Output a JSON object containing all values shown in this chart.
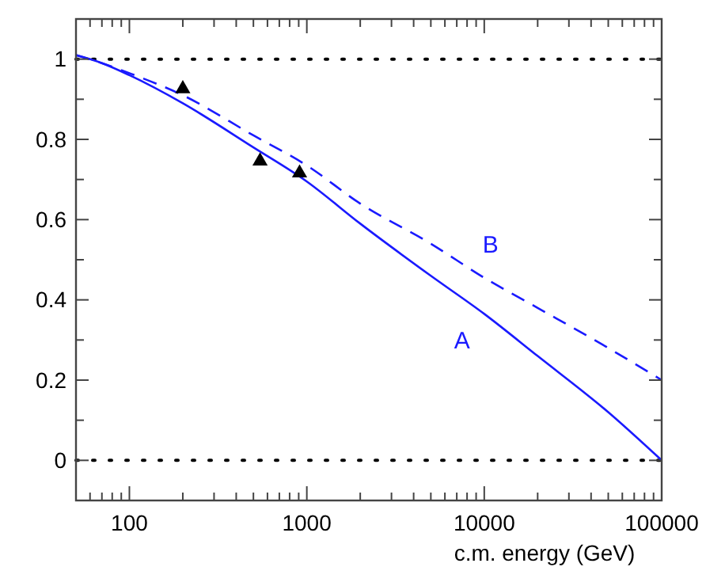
{
  "chart_data": {
    "type": "line",
    "xlabel": "c.m. energy (GeV)",
    "log": "x",
    "xlim": [
      50,
      100000
    ],
    "ylim": [
      -0.1,
      1.1
    ],
    "xticks": [
      {
        "value": 60,
        "label": null
      },
      {
        "value": 70,
        "label": null
      },
      {
        "value": 80,
        "label": null
      },
      {
        "value": 90,
        "label": null
      },
      100,
      {
        "value": 200,
        "label": null
      },
      {
        "value": 300,
        "label": null
      },
      {
        "value": 400,
        "label": null
      },
      {
        "value": 500,
        "label": null
      },
      {
        "value": 600,
        "label": null
      },
      {
        "value": 700,
        "label": null
      },
      {
        "value": 800,
        "label": null
      },
      {
        "value": 900,
        "label": null
      },
      1000,
      {
        "value": 2000,
        "label": null
      },
      {
        "value": 3000,
        "label": null
      },
      {
        "value": 4000,
        "label": null
      },
      {
        "value": 5000,
        "label": null
      },
      {
        "value": 6000,
        "label": null
      },
      {
        "value": 7000,
        "label": null
      },
      {
        "value": 8000,
        "label": null
      },
      {
        "value": 9000,
        "label": null
      },
      10000,
      {
        "value": 20000,
        "label": null
      },
      {
        "value": 30000,
        "label": null
      },
      {
        "value": 40000,
        "label": null
      },
      {
        "value": 50000,
        "label": null
      },
      {
        "value": 60000,
        "label": null
      },
      {
        "value": 70000,
        "label": null
      },
      {
        "value": 80000,
        "label": null
      },
      {
        "value": 90000,
        "label": null
      },
      100000
    ],
    "yticks": [
      0,
      {
        "value": 0.1,
        "label": null
      },
      0.2,
      {
        "value": 0.3,
        "label": null
      },
      0.4,
      {
        "value": 0.5,
        "label": null
      },
      0.6,
      {
        "value": 0.7,
        "label": null
      },
      0.8,
      {
        "value": 0.9,
        "label": null
      },
      1
    ],
    "grid": false,
    "ref_lines": [
      {
        "axis": "y",
        "value": 0,
        "color": "#000000",
        "line_style": "dotted"
      },
      {
        "axis": "y",
        "value": 1,
        "color": "#000000",
        "line_style": "dotted"
      }
    ],
    "series": [
      {
        "name": "A",
        "color": "#1a1aff",
        "line_style": "solid",
        "marker": "none",
        "x": [
          50,
          70,
          100,
          200,
          500,
          1000,
          2000,
          5000,
          10000,
          20000,
          50000,
          100000
        ],
        "values": [
          1.01,
          0.99,
          0.96,
          0.89,
          0.78,
          0.695,
          0.59,
          0.46,
          0.365,
          0.26,
          0.12,
          0
        ]
      },
      {
        "name": "B",
        "color": "#1a1aff",
        "line_style": "dashed",
        "marker": "none",
        "x": [
          50,
          70,
          100,
          200,
          500,
          1000,
          2000,
          5000,
          10000,
          20000,
          50000,
          100000
        ],
        "values": [
          1.01,
          0.99,
          0.965,
          0.91,
          0.81,
          0.735,
          0.64,
          0.54,
          0.455,
          0.38,
          0.28,
          0.2
        ]
      },
      {
        "type": "scatter",
        "color": "#000000",
        "marker": "triangle",
        "x": [
          200,
          545,
          910
        ],
        "values": [
          0.93,
          0.75,
          0.72
        ]
      }
    ]
  }
}
